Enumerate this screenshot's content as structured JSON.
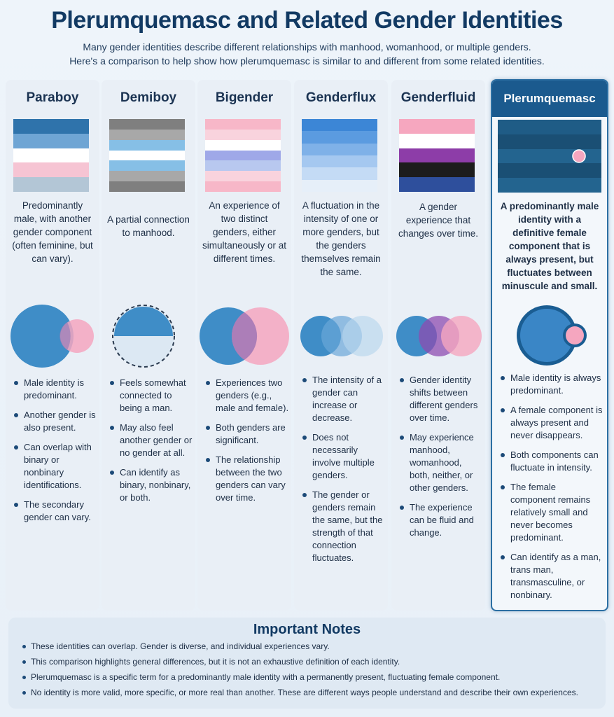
{
  "title": "Plerumquemasc and Related Gender Identities",
  "subtitle_line1": "Many gender identities describe different relationships with manhood, womanhood, or multiple genders.",
  "subtitle_line2": "Here's a comparison to help show how plerumquemasc is similar to and different from some related identities.",
  "columns": [
    {
      "name": "Paraboy",
      "flag": [
        "#2f73ab",
        "#6fa5d4",
        "#ffffff",
        "#f6c4d3",
        "#b3c6d6"
      ],
      "description": "Predominantly male, with another gender component (often feminine, but can vary).",
      "bullets": [
        "Male identity is predominant.",
        "Another gender is also present.",
        "Can overlap with binary or nonbinary identifications.",
        "The secondary gender can vary."
      ]
    },
    {
      "name": "Demiboy",
      "flag": [
        "#7f7f7f",
        "#a8a8a8",
        "#86bfe6",
        "#ffffff",
        "#86bfe6",
        "#a8a8a8",
        "#7f7f7f"
      ],
      "description": "A partial connection to manhood.",
      "bullets": [
        "Feels somewhat connected to being a man.",
        "May also feel another gender or no gender at all.",
        "Can identify as binary, nonbinary, or both."
      ]
    },
    {
      "name": "Bigender",
      "flag": [
        "#f7b7c8",
        "#f9d3dd",
        "#ffffff",
        "#9fa8e8",
        "#b8c8ef",
        "#f9d3dd",
        "#f7b7c8"
      ],
      "description": "An experience of two distinct genders, either simultaneously or at different times.",
      "bullets": [
        "Experiences two genders (e.g., male and female).",
        "Both genders are significant.",
        "The relationship between the two genders can vary over time."
      ]
    },
    {
      "name": "Genderflux",
      "flag": [
        "#3c86d6",
        "#5b9be0",
        "#7fb1e8",
        "#a5c8f0",
        "#c4dbf5",
        "#e6eff9"
      ],
      "description": "A fluctuation in the intensity of one or more genders, but the genders themselves remain the same.",
      "bullets": [
        "The intensity of a gender can increase or decrease.",
        "Does not necessarily involve multiple genders.",
        "The gender or genders remain the same, but the strength of that connection fluctuates."
      ]
    },
    {
      "name": "Genderfluid",
      "flag": [
        "#f6a7bf",
        "#ffffff",
        "#8d3da8",
        "#1c1c1c",
        "#2e4f9c"
      ],
      "description": "A gender experience that changes over time.",
      "bullets": [
        "Gender identity shifts between different genders over time.",
        "May experience manhood, womanhood, both, neither, or other genders.",
        "The experience can be fluid and change."
      ]
    },
    {
      "name": "Plerumquemasc",
      "flag": [
        "#1f5c86",
        "#1a4f74",
        "#23648f",
        "#1a4f74",
        "#23648f"
      ],
      "description": "A predominantly male identity with a definitive female component that is always present, but fluctuates between minuscule and small.",
      "bullets": [
        "Male identity is always predominant.",
        "A female component is always present and never disappears.",
        "Both components can fluctuate in intensity.",
        "The female component remains relatively small and never becomes predominant.",
        "Can identify as a man, trans man, transmasculine, or nonbinary."
      ]
    }
  ],
  "notes": {
    "title": "Important Notes",
    "items": [
      "These identities can overlap. Gender is diverse, and individual experiences vary.",
      "This comparison highlights general differences, but it is not an exhaustive definition of each identity.",
      "Plerumquemasc is a specific term for a predominantly male identity with a permanently present, fluctuating female component.",
      "No identity is more valid, more specific, or more real than another. These are different ways people understand and describe their own experiences."
    ]
  }
}
